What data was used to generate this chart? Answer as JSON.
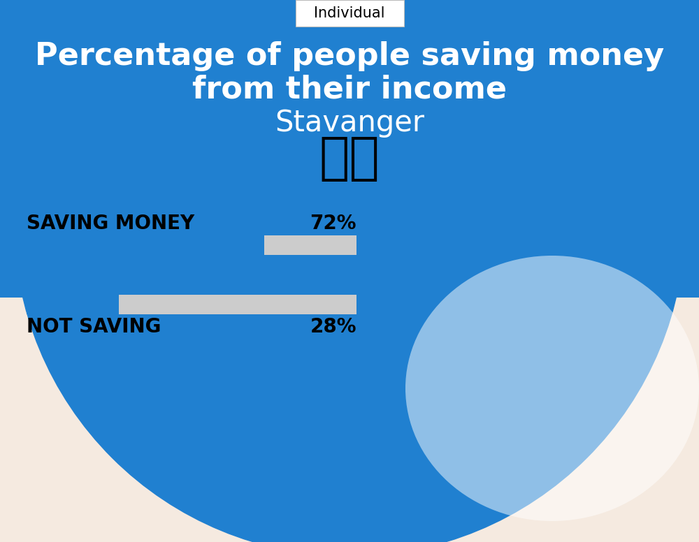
{
  "title_line1": "Percentage of people saving money",
  "title_line2": "from their income",
  "city": "Stavanger",
  "tab_label": "Individual",
  "flag_emoji": "🇳🇴",
  "categories": [
    "SAVING MONEY",
    "NOT SAVING"
  ],
  "values": [
    72,
    28
  ],
  "bar_color": "#2080D0",
  "bar_bg_color": "#CCCCCC",
  "background_top": "#2080D0",
  "background_bottom": "#F5EAE0",
  "title_color": "#FFFFFF",
  "city_color": "#FFFFFF",
  "label_color": "#000000",
  "value_color": "#000000",
  "label_fontsize": 20,
  "value_fontsize": 20,
  "title_fontsize": 32,
  "city_fontsize": 30,
  "tab_fontsize": 15
}
